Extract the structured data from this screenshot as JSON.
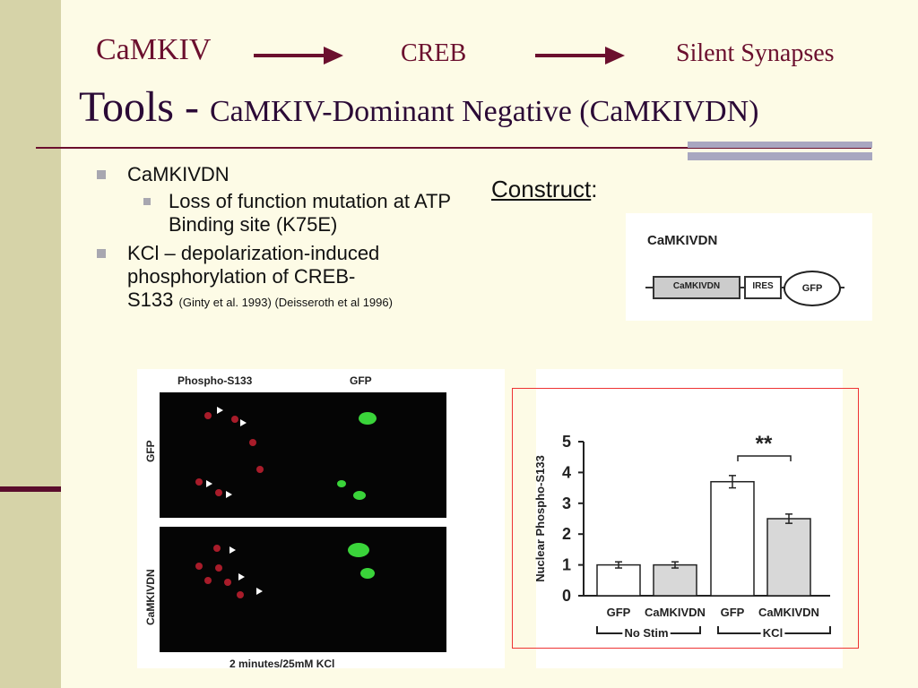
{
  "header": {
    "item1": "CaMKIV",
    "item2": "CREB",
    "item3": "Silent Synapses"
  },
  "title": {
    "main": "Tools - ",
    "sub": "CaMKIV-Dominant Negative (CaMKIVDN)"
  },
  "bullets": {
    "b1": "CaMKIVDN",
    "b1_sub": "Loss of function mutation at ATP Binding site (K75E)",
    "b2_line1": "KCl – depolarization-induced phosphorylation of CREB-",
    "b2_line2": "S133 ",
    "b2_cite": "(Ginty et al. 1993) (Deisseroth et al 1996)"
  },
  "construct": {
    "label": "Construct",
    "colon": ":",
    "panel_title": "CaMKIVDN",
    "box1": "CaMKIVDN",
    "box2": "IRES",
    "box3": "GFP"
  },
  "micrograph": {
    "col1": "Phospho-S133",
    "col2": "GFP",
    "row1": "GFP",
    "row2": "CaMKIVDN",
    "footer": "2 minutes/25mM KCl"
  },
  "chart_data": {
    "type": "bar",
    "categories": [
      "GFP",
      "CaMKIVDN",
      "GFP",
      "CaMKIVDN"
    ],
    "values": [
      1.0,
      1.0,
      3.7,
      2.5
    ],
    "errors": [
      0.1,
      0.1,
      0.2,
      0.15
    ],
    "ylabel": "Nuclear Phospho-S133",
    "ylim": [
      0,
      5
    ],
    "yticks": [
      "0",
      "1",
      "2",
      "3",
      "4",
      "5"
    ],
    "group_labels": [
      "No Stim",
      "KCl"
    ],
    "significance": "**",
    "bar_colors": [
      "#ffffff",
      "#d8d8d8",
      "#ffffff",
      "#d8d8d8"
    ]
  }
}
